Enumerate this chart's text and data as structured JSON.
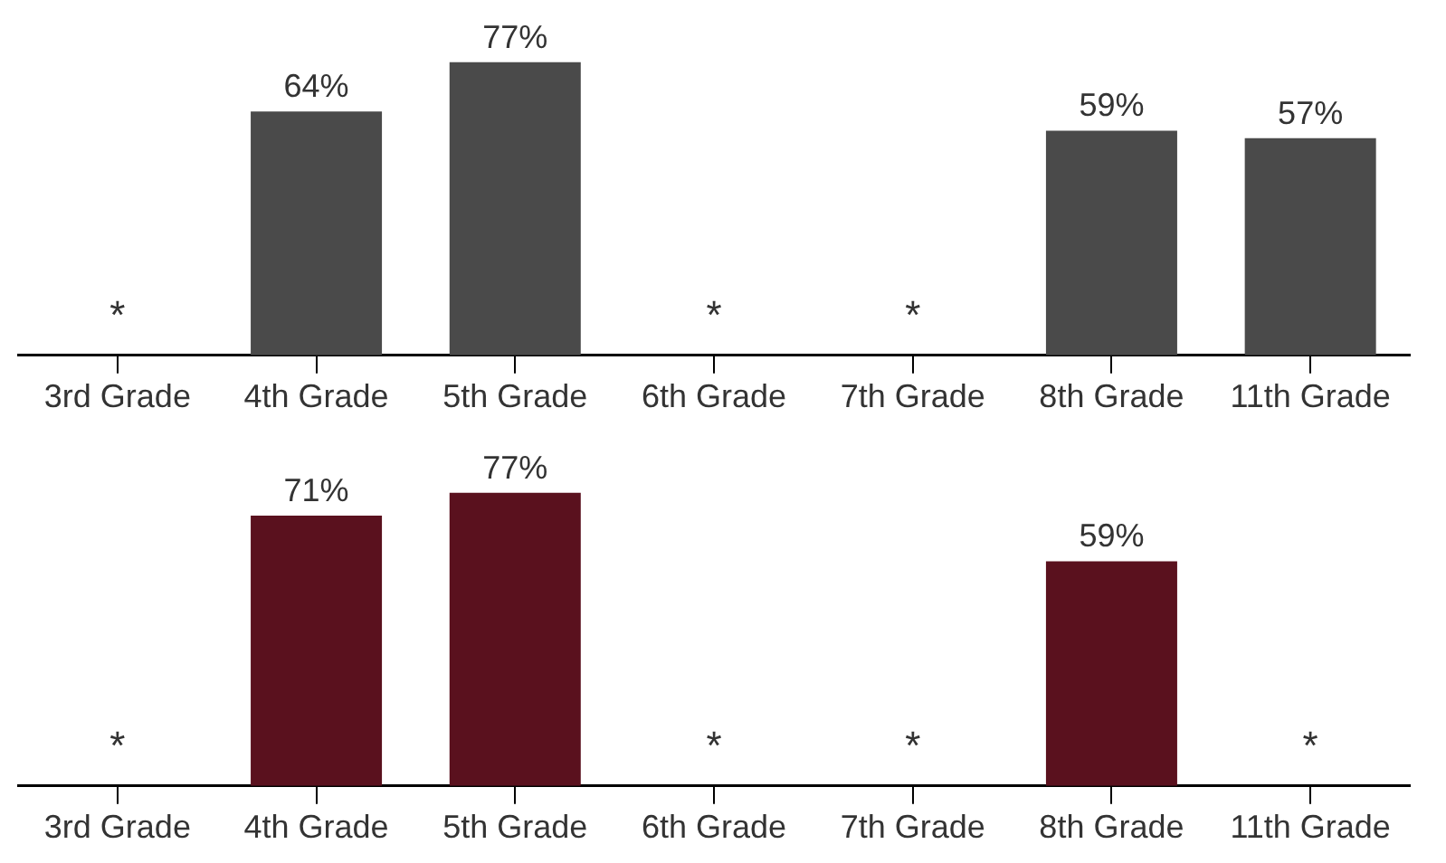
{
  "chart_data": [
    {
      "type": "bar",
      "categories": [
        "3rd Grade",
        "4th Grade",
        "5th Grade",
        "6th Grade",
        "7th Grade",
        "8th Grade",
        "11th Grade"
      ],
      "values": [
        null,
        64,
        77,
        null,
        null,
        59,
        57
      ],
      "color": "#4a4a4a",
      "value_labels": [
        "*",
        "64%",
        "77%",
        "*",
        "*",
        "59%",
        "57%"
      ],
      "tick_labels": "x"
    },
    {
      "type": "bar",
      "categories": [
        "3rd Grade",
        "4th Grade",
        "5th Grade",
        "6th Grade",
        "7th Grade",
        "8th Grade",
        "11th Grade"
      ],
      "values": [
        null,
        71,
        77,
        null,
        null,
        59,
        null
      ],
      "color": "#5a111e",
      "value_labels": [
        "*",
        "71%",
        "77%",
        "*",
        "*",
        "59%",
        "*"
      ],
      "tick_labels": "x"
    }
  ]
}
